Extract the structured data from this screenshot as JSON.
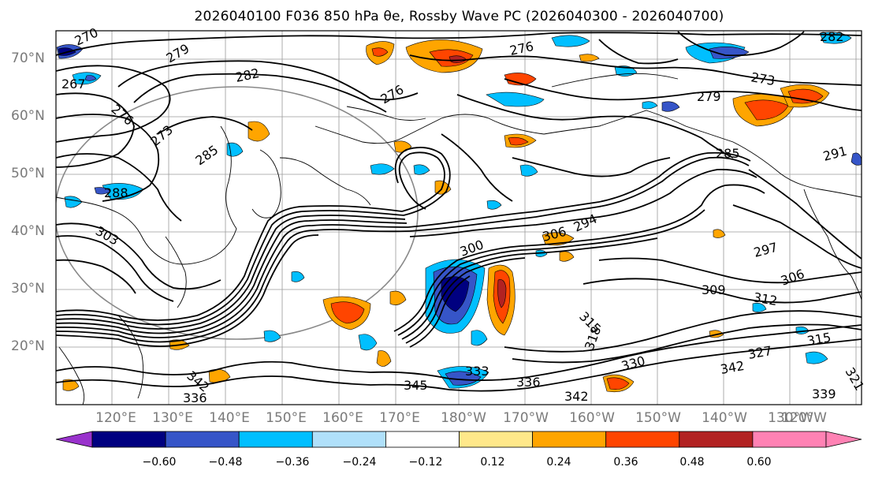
{
  "title": "2026040100 F036 850 hPa θe, Rossby Wave PC (2026040300 - 2026040700)",
  "lat_labels": [
    "70°N",
    "60°N",
    "50°N",
    "40°N",
    "30°N",
    "20°N"
  ],
  "lon_labels": [
    "120°E",
    "130°E",
    "140°E",
    "150°E",
    "160°E",
    "170°E",
    "180°W",
    "170°W",
    "160°W",
    "150°W",
    "140°W",
    "130°W",
    "120°W"
  ],
  "contour_labels": [
    "270",
    "279",
    "282",
    "276",
    "273",
    "276",
    "276",
    "282",
    "273",
    "279",
    "267",
    "288",
    "285",
    "303",
    "300",
    "294",
    "306",
    "297",
    "309",
    "306",
    "312",
    "315",
    "315",
    "327",
    "318",
    "330",
    "342",
    "336",
    "345",
    "342",
    "339",
    "321",
    "342",
    "336",
    "333",
    "291",
    "285"
  ],
  "colorbar": {
    "ticks": [
      "−0.60",
      "−0.48",
      "−0.36",
      "−0.24",
      "−0.12",
      "0.12",
      "0.24",
      "0.36",
      "0.48",
      "0.60"
    ],
    "colors": [
      "#9932cc",
      "#000080",
      "#3655c8",
      "#00bfff",
      "#b0e0fa",
      "#ffffff",
      "#ffe88a",
      "#ffa500",
      "#ff4500",
      "#b22222",
      "#ff82b4",
      "#ff82b4"
    ]
  }
}
